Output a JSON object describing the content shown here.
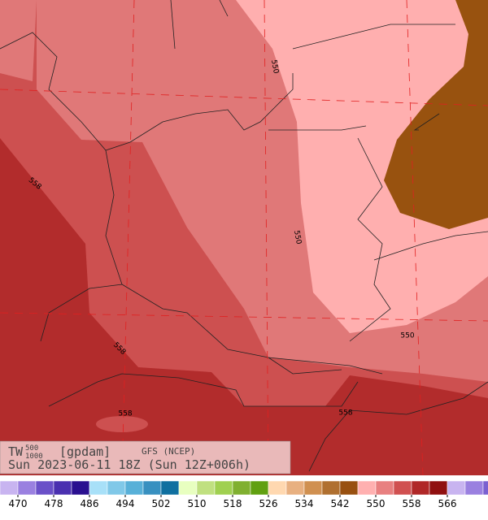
{
  "map": {
    "header": {
      "variable": "TW",
      "level_top": "500",
      "level_bottom": "1000",
      "unit": "[gpdam]",
      "model": "GFS (NCEP)"
    },
    "subtitle": "Sun 2023-06-11 18Z (Sun 12Z+006h)",
    "contour_labels": [
      "550",
      "550",
      "550",
      "558",
      "558",
      "558",
      "558"
    ]
  },
  "colorbar": {
    "ticks": [
      470,
      478,
      486,
      494,
      502,
      510,
      518,
      526,
      534,
      542,
      550,
      558,
      566
    ],
    "colors": [
      "#c8b4f0",
      "#9a80e0",
      "#6a50c8",
      "#4a30b0",
      "#2a1090",
      "#a8e0f8",
      "#80c8e8",
      "#58b0d8",
      "#3890c0",
      "#1070a0",
      "#e8ffc0",
      "#c0e080",
      "#a0d050",
      "#80b030",
      "#60a010",
      "#ffd8b0",
      "#e8b080",
      "#d09050",
      "#b07030",
      "#985010",
      "#ffb0b0",
      "#e88080",
      "#d05050",
      "#b02828",
      "#901010",
      "#c8b4f0",
      "#9a80e0",
      "#7a60d0"
    ]
  }
}
